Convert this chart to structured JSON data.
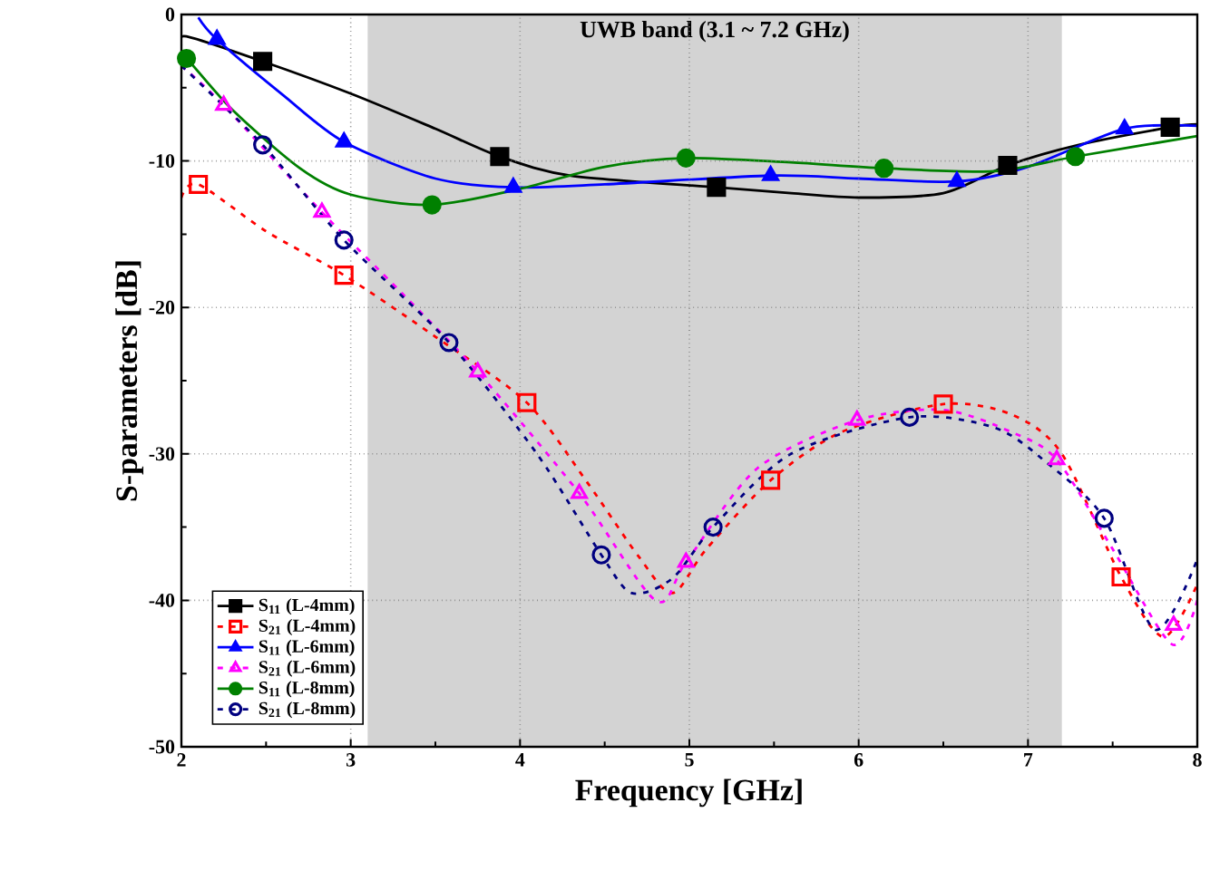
{
  "chart_data": {
    "type": "line",
    "xlabel": "Frequency [GHz]",
    "ylabel": "S-parameters [dB]",
    "xlim": [
      2,
      8
    ],
    "ylim": [
      -50,
      0
    ],
    "xticks": [
      2,
      3,
      4,
      5,
      6,
      7,
      8
    ],
    "yticks": [
      -50,
      -40,
      -30,
      -20,
      -10,
      0
    ],
    "grid": true,
    "legend": "bottom left",
    "bands": [
      {
        "axis": "x",
        "from": 3.1,
        "to": 7.2,
        "label": "UWB band (3.1 ~ 7.2 GHz)",
        "color": "#d3d3d3"
      }
    ],
    "series": [
      {
        "color": "#000000",
        "line_style": "solid",
        "x": [
          2.0,
          2.03,
          2.48,
          3.0,
          3.5,
          3.88,
          4.3,
          5.16,
          5.6,
          6.0,
          6.5,
          6.88,
          7.3,
          7.84,
          8.0
        ],
        "values": [
          -2.1,
          -1.5,
          -3.2,
          -5.4,
          -7.8,
          -9.7,
          -11.0,
          -11.8,
          -12.2,
          -12.5,
          -12.2,
          -10.3,
          -8.9,
          -7.7,
          -7.5
        ]
      },
      {
        "color": "#ff0000",
        "line_style": "dashed",
        "x": [
          2.0,
          2.1,
          2.5,
          2.96,
          3.5,
          4.04,
          4.4,
          4.7,
          4.9,
          5.1,
          5.48,
          5.9,
          6.5,
          6.9,
          7.2,
          7.55,
          7.8,
          8.0
        ],
        "values": [
          -12.5,
          -11.6,
          -14.8,
          -17.8,
          -22.0,
          -26.5,
          -32.0,
          -37.0,
          -39.5,
          -36.5,
          -31.8,
          -28.5,
          -26.6,
          -27.3,
          -30.0,
          -38.4,
          -42.5,
          -38.9
        ]
      },
      {
        "color": "#0000ff",
        "line_style": "solid",
        "x": [
          2.1,
          2.21,
          2.6,
          2.96,
          3.5,
          3.96,
          4.5,
          5.48,
          6.0,
          6.58,
          7.0,
          7.57,
          8.0
        ],
        "values": [
          -0.2,
          -1.7,
          -5.5,
          -8.7,
          -11.2,
          -11.8,
          -11.6,
          -11.0,
          -11.2,
          -11.4,
          -10.4,
          -7.8,
          -7.6
        ]
      },
      {
        "color": "#ff00ff",
        "line_style": "dashed",
        "x": [
          2.0,
          2.25,
          2.83,
          3.3,
          3.75,
          4.35,
          4.8,
          4.98,
          5.4,
          5.99,
          6.5,
          6.9,
          7.17,
          7.5,
          7.85,
          8.0
        ],
        "values": [
          -3.5,
          -6.2,
          -13.5,
          -19.0,
          -24.4,
          -32.7,
          -40.0,
          -37.4,
          -31.0,
          -27.7,
          -27.0,
          -28.5,
          -30.4,
          -36.5,
          -43.0,
          -40.0
        ]
      },
      {
        "color": "#008000",
        "line_style": "solid",
        "x": [
          2.0,
          2.03,
          2.3,
          2.7,
          3.0,
          3.48,
          4.0,
          4.5,
          4.98,
          5.6,
          6.15,
          6.8,
          7.28,
          8.0
        ],
        "values": [
          -3.2,
          -3.0,
          -6.5,
          -10.5,
          -12.3,
          -13.0,
          -11.9,
          -10.4,
          -9.8,
          -10.1,
          -10.5,
          -10.7,
          -9.7,
          -8.3
        ]
      },
      {
        "color": "#000080",
        "line_style": "dashed",
        "x": [
          2.0,
          2.48,
          2.96,
          3.58,
          4.1,
          4.48,
          4.66,
          4.9,
          5.14,
          5.6,
          6.3,
          6.8,
          7.1,
          7.45,
          7.75,
          8.0
        ],
        "values": [
          -3.5,
          -8.9,
          -15.4,
          -22.4,
          -30.0,
          -36.9,
          -39.5,
          -38.5,
          -35.0,
          -30.0,
          -27.5,
          -28.2,
          -30.5,
          -34.4,
          -42.0,
          -37.2
        ]
      },
      {
        "type": "scatter",
        "name": "S$_{11}$ (L-4mm)",
        "color": "#000000",
        "marker": "square",
        "line_style": "solid",
        "x": [
          2.48,
          3.88,
          5.16,
          6.88,
          7.84
        ],
        "values": [
          -3.2,
          -9.7,
          -11.8,
          -10.3,
          -7.7
        ]
      },
      {
        "type": "scatter",
        "name": "S$_{21}$ (L-4mm)",
        "color": "#ff0000",
        "marker": "square",
        "line_style": "dashed",
        "x": [
          2.1,
          2.96,
          4.04,
          5.48,
          6.5,
          7.55
        ],
        "values": [
          -11.6,
          -17.8,
          -26.5,
          -31.8,
          -26.6,
          -38.4
        ]
      },
      {
        "type": "scatter",
        "name": "S$_{11}$ (L-6mm)",
        "color": "#0000ff",
        "marker": "triangle",
        "line_style": "solid",
        "x": [
          2.21,
          2.96,
          3.96,
          5.48,
          6.58,
          7.57
        ],
        "values": [
          -1.7,
          -8.7,
          -11.8,
          -11.0,
          -11.4,
          -7.8
        ]
      },
      {
        "type": "scatter",
        "name": "S$_{21}$ (L-6mm)",
        "color": "#ff00ff",
        "marker": "triangle",
        "line_style": "dashed",
        "x": [
          2.25,
          2.83,
          3.75,
          4.35,
          4.98,
          5.99,
          7.17,
          7.86
        ],
        "values": [
          -6.2,
          -13.5,
          -24.4,
          -32.7,
          -37.4,
          -27.7,
          -30.4,
          -41.7
        ]
      },
      {
        "type": "scatter",
        "name": "S$_{11}$ (L-8mm)",
        "color": "#008000",
        "marker": "circle",
        "line_style": "solid",
        "x": [
          2.03,
          3.48,
          4.98,
          6.15,
          7.28
        ],
        "values": [
          -3.0,
          -13.0,
          -9.8,
          -10.5,
          -9.7
        ]
      },
      {
        "type": "scatter",
        "name": "S$_{21}$ (L-8mm)",
        "color": "#000080",
        "marker": "circle",
        "line_style": "dashed",
        "x": [
          2.48,
          2.96,
          3.58,
          4.48,
          5.14,
          6.3,
          7.45
        ],
        "values": [
          -8.9,
          -15.4,
          -22.4,
          -36.9,
          -35.0,
          -27.5,
          -34.4
        ]
      }
    ]
  }
}
